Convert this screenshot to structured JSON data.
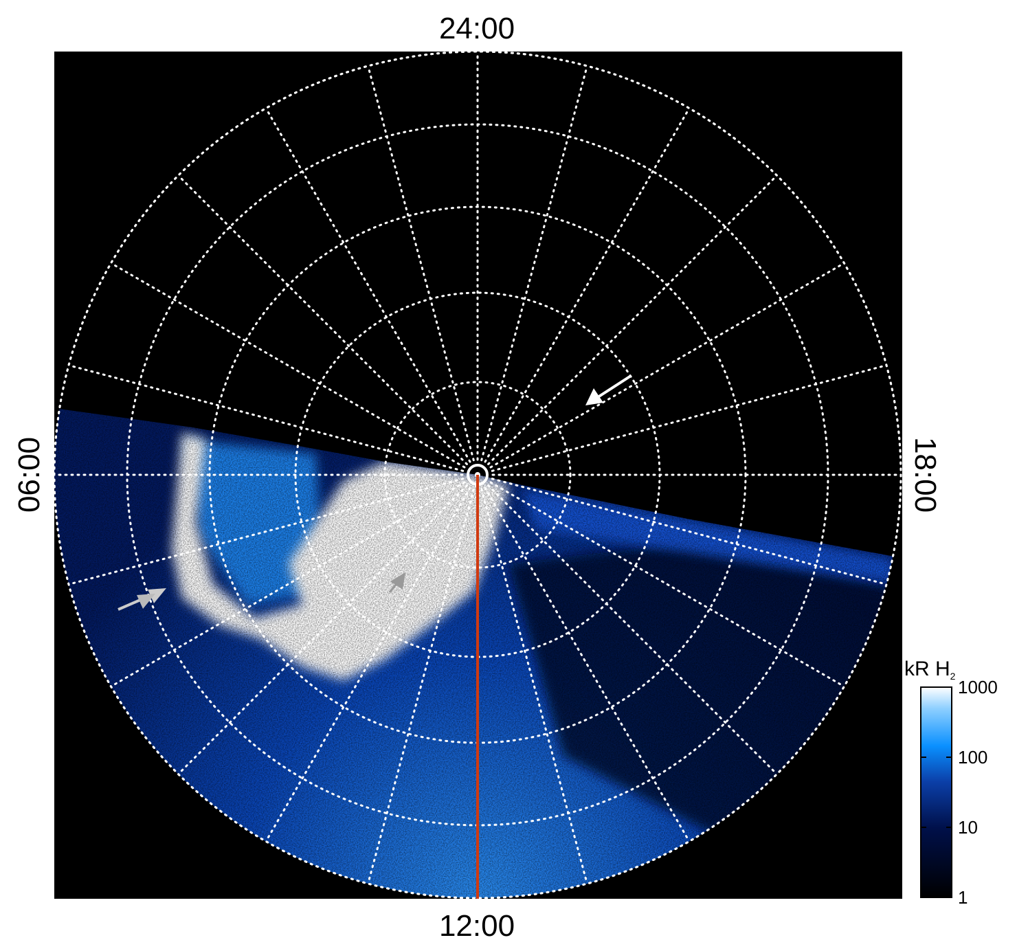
{
  "chart_data": {
    "type": "heatmap",
    "projection": "polar",
    "local_time_labels": {
      "top": "24:00",
      "left": "06:00",
      "right": "18:00",
      "bottom": "12:00"
    },
    "grid": true,
    "grid_style": "dotted white",
    "meridian_hours": 24,
    "latitude_rings": 5,
    "colorbar": {
      "label": "kR H",
      "label_subscript": "2",
      "scale": "log",
      "range": [
        1,
        1000
      ],
      "ticks": [
        "1000",
        "100",
        "10",
        "1"
      ],
      "colormap": [
        "#000000",
        "#000a40",
        "#0a3ab0",
        "#0a8cff",
        "#9fd4ff",
        "#ffffff"
      ],
      "placement": "right"
    },
    "highlight_line": {
      "color": "#d03a10",
      "from": "pole",
      "toward": "12:00"
    },
    "annotations": [
      {
        "kind": "arrow",
        "color": "#ffffff",
        "near": "dusk-midnight sector"
      },
      {
        "kind": "double-arrow",
        "color": "#c8c8c8",
        "near": "dawn side"
      },
      {
        "kind": "arrow",
        "color": "#999999",
        "near": "noon bright region"
      }
    ]
  }
}
